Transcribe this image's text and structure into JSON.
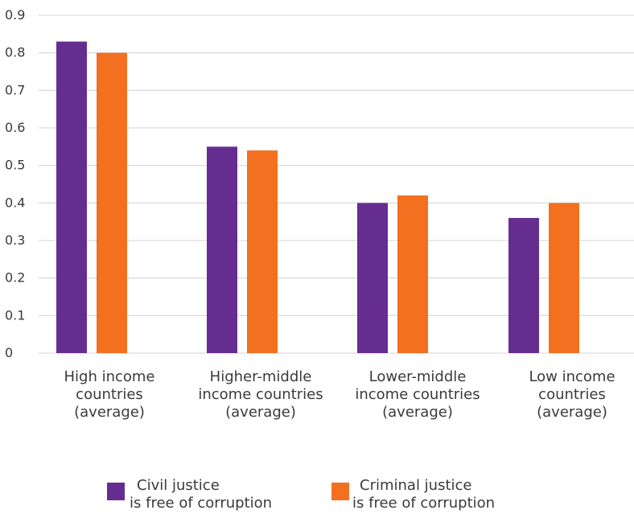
{
  "chart_data": {
    "type": "bar",
    "categories": [
      [
        "High income",
        "countries",
        "(average)"
      ],
      [
        "Higher-middle",
        "income countries",
        "(average)"
      ],
      [
        "Lower-middle",
        "income countries",
        "(average)"
      ],
      [
        "Low income",
        "countries",
        "(average)"
      ]
    ],
    "series": [
      {
        "name": [
          "Civil justice",
          "is free of corruption"
        ],
        "color": "#662d91",
        "values": [
          0.83,
          0.55,
          0.4,
          0.36
        ]
      },
      {
        "name": [
          "Criminal justice",
          "is free of corruption"
        ],
        "color": "#f37021",
        "values": [
          0.8,
          0.54,
          0.42,
          0.4
        ]
      }
    ],
    "ylim": [
      0,
      0.9
    ],
    "yticks": [
      "0",
      "0.1",
      "0.2",
      "0.3",
      "0.4",
      "0.5",
      "0.6",
      "0.7",
      "0.8",
      "0.9"
    ],
    "grid": true,
    "gridColor": "#dcdcdc",
    "legend": "bottom"
  }
}
